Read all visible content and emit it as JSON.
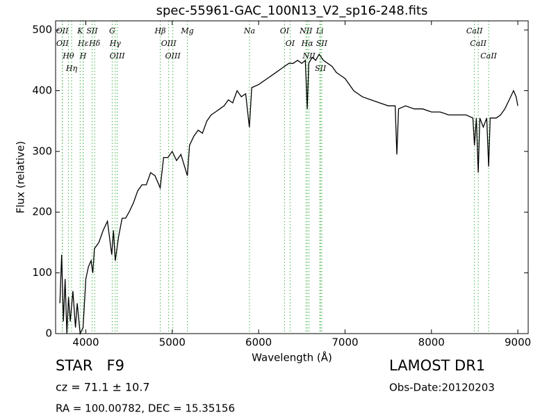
{
  "chart_data": {
    "type": "line",
    "title": "spec-55961-GAC_100N13_V2_sp16-248.fits",
    "xlabel": "Wavelength (Å)",
    "ylabel": "Flux (relative)",
    "xlim": [
      3650,
      9120
    ],
    "ylim": [
      0,
      515
    ],
    "xticks": [
      4000,
      5000,
      6000,
      7000,
      8000,
      9000
    ],
    "yticks": [
      0,
      100,
      200,
      300,
      400,
      500
    ],
    "color": "#000000",
    "line_color": "#3cb043",
    "x": [
      3700,
      3720,
      3740,
      3760,
      3780,
      3800,
      3820,
      3850,
      3880,
      3900,
      3934,
      3968,
      4000,
      4030,
      4060,
      4080,
      4100,
      4150,
      4200,
      4250,
      4300,
      4320,
      4340,
      4380,
      4420,
      4460,
      4500,
      4550,
      4600,
      4650,
      4700,
      4750,
      4800,
      4861,
      4900,
      4950,
      5000,
      5050,
      5100,
      5175,
      5200,
      5250,
      5300,
      5350,
      5400,
      5450,
      5500,
      5550,
      5600,
      5650,
      5700,
      5750,
      5800,
      5850,
      5893,
      5920,
      6000,
      6100,
      6200,
      6250,
      6300,
      6350,
      6400,
      6450,
      6500,
      6540,
      6563,
      6580,
      6620,
      6660,
      6700,
      6750,
      6800,
      6850,
      6900,
      6950,
      7000,
      7050,
      7100,
      7150,
      7200,
      7300,
      7400,
      7500,
      7580,
      7600,
      7620,
      7700,
      7800,
      7900,
      8000,
      8100,
      8200,
      8300,
      8400,
      8480,
      8498,
      8520,
      8542,
      8560,
      8600,
      8640,
      8662,
      8680,
      8750,
      8800,
      8850,
      8900,
      8950,
      8980,
      9000
    ],
    "values": [
      50,
      130,
      20,
      90,
      0,
      60,
      20,
      70,
      10,
      50,
      0,
      10,
      90,
      110,
      120,
      100,
      140,
      150,
      170,
      185,
      130,
      170,
      120,
      160,
      190,
      190,
      200,
      215,
      235,
      245,
      245,
      265,
      260,
      240,
      290,
      290,
      300,
      285,
      295,
      260,
      310,
      325,
      335,
      330,
      350,
      360,
      365,
      370,
      375,
      385,
      380,
      400,
      390,
      395,
      340,
      405,
      410,
      420,
      430,
      435,
      440,
      445,
      445,
      450,
      445,
      450,
      370,
      445,
      455,
      450,
      460,
      450,
      445,
      440,
      430,
      425,
      420,
      410,
      400,
      395,
      390,
      385,
      380,
      375,
      375,
      295,
      370,
      375,
      370,
      370,
      365,
      365,
      360,
      360,
      360,
      355,
      310,
      355,
      265,
      355,
      340,
      355,
      275,
      355,
      355,
      360,
      370,
      385,
      400,
      390,
      375
    ],
    "lines": [
      {
        "label": "OII",
        "x": 3727
      },
      {
        "label": "OII",
        "x": 3729
      },
      {
        "label": "Hθ",
        "x": 3798
      },
      {
        "label": "Hη",
        "x": 3835
      },
      {
        "label": "K",
        "x": 3934
      },
      {
        "label": "Hε",
        "x": 3970
      },
      {
        "label": "H",
        "x": 3968
      },
      {
        "label": "SII",
        "x": 4072
      },
      {
        "label": "Hδ",
        "x": 4102
      },
      {
        "label": "G",
        "x": 4305
      },
      {
        "label": "Hγ",
        "x": 4340
      },
      {
        "label": "OIII",
        "x": 4363
      },
      {
        "label": "Hβ",
        "x": 4861
      },
      {
        "label": "OIII",
        "x": 4959
      },
      {
        "label": "OIII",
        "x": 5007
      },
      {
        "label": "Mg",
        "x": 5175
      },
      {
        "label": "Na",
        "x": 5894
      },
      {
        "label": "OI",
        "x": 6300
      },
      {
        "label": "OI",
        "x": 6364
      },
      {
        "label": "NII",
        "x": 6548
      },
      {
        "label": "Hα",
        "x": 6563
      },
      {
        "label": "NII",
        "x": 6583
      },
      {
        "label": "Li",
        "x": 6708
      },
      {
        "label": "SII",
        "x": 6716
      },
      {
        "label": "SII",
        "x": 6731
      },
      {
        "label": "CaII",
        "x": 8498
      },
      {
        "label": "CaII",
        "x": 8542
      },
      {
        "label": "CaII",
        "x": 8662
      }
    ],
    "footer": {
      "object": "STAR   F9",
      "cz": "cz = 71.1 ± 10.7",
      "coords": "RA = 100.00782, DEC = 15.35156",
      "survey": "LAMOST DR1",
      "date": "Obs-Date:20120203"
    }
  }
}
